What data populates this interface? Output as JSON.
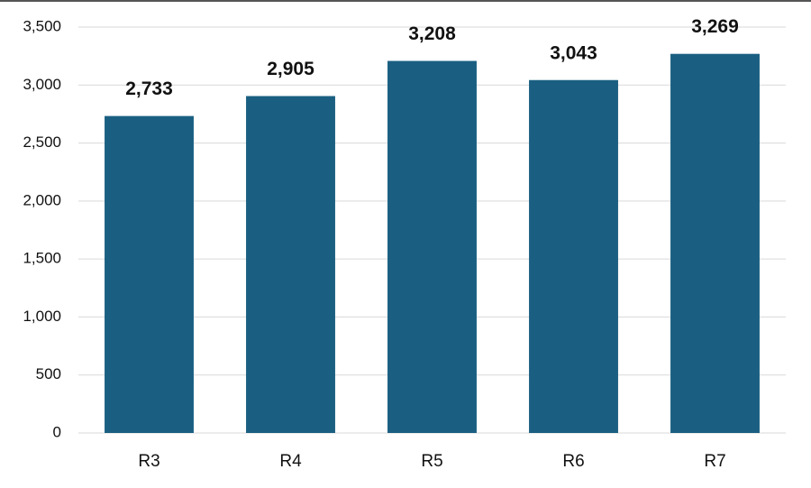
{
  "chart_data": {
    "type": "bar",
    "categories": [
      "R3",
      "R4",
      "R5",
      "R6",
      "R7"
    ],
    "values": [
      2733,
      2905,
      3208,
      3043,
      3269
    ],
    "value_labels": [
      "2,733",
      "2,905",
      "3,208",
      "3,043",
      "3,269"
    ],
    "color": "#1a5f82",
    "ylim": [
      0,
      3500
    ],
    "yticks": [
      0,
      500,
      {
        "value": 1000,
        "label": "1,000"
      },
      {
        "value": 1500,
        "label": "1,500"
      },
      {
        "value": 2000,
        "label": "2,000"
      },
      {
        "value": 2500,
        "label": "2,500"
      },
      {
        "value": 3000,
        "label": "3,000"
      },
      {
        "value": 3500,
        "label": "3,500"
      }
    ],
    "grid": true
  }
}
